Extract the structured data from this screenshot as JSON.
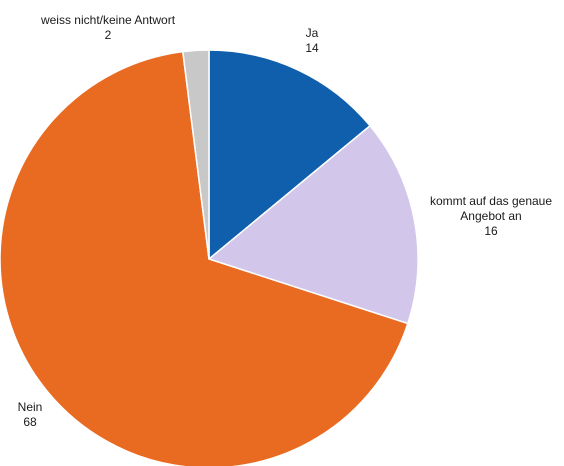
{
  "chart_data": {
    "type": "pie",
    "title": "",
    "slices": [
      {
        "label": [
          "Ja"
        ],
        "value": 14,
        "color": "#0f5fad"
      },
      {
        "label": [
          "kommt auf das genaue",
          "Angebot an"
        ],
        "value": 16,
        "color": "#d2c6ea"
      },
      {
        "label": [
          "Nein"
        ],
        "value": 68,
        "color": "#e96b22"
      },
      {
        "label": [
          "weiss nicht/keine Antwort"
        ],
        "value": 2,
        "color": "#c8c8c8"
      }
    ],
    "start": "12 o'clock",
    "direction": "clockwise",
    "legend": "none"
  }
}
